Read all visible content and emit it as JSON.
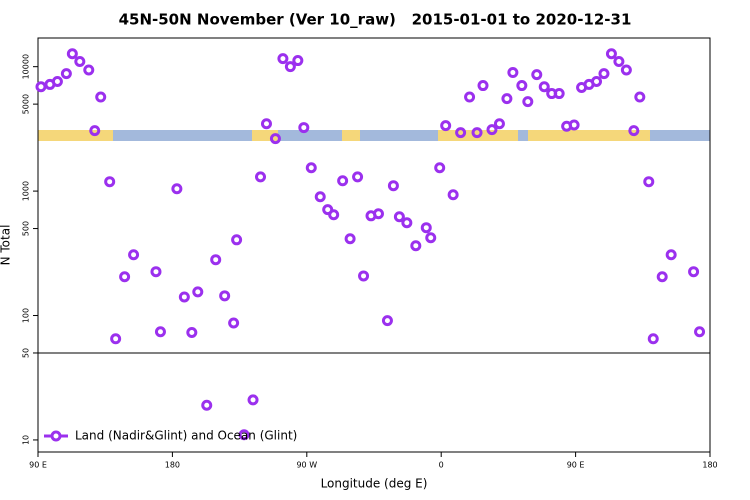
{
  "chart_data": {
    "type": "scatter",
    "title": "45N-50N November (Ver 10_raw)   2015-01-01 to 2020-12-31",
    "x_label": "Longitude (deg E)",
    "y_label": "N Total",
    "log_y": true,
    "hline": 50,
    "xlim": [
      90,
      540
    ],
    "xticks": [
      {
        "value": 90,
        "label": "90 E"
      },
      {
        "value": 180,
        "label": "180"
      },
      {
        "value": 270,
        "label": "90 W"
      },
      {
        "value": 360,
        "label": "0"
      },
      {
        "value": 450,
        "label": "90 E"
      },
      {
        "value": 540,
        "label": "180"
      }
    ],
    "ylim": [
      8,
      17000
    ],
    "yticks": [
      10,
      50,
      100,
      500,
      1000,
      5000,
      10000
    ],
    "legend_position": "lower left",
    "series": [
      {
        "name": "Land (Nadir&Glint) and Ocean (Glint)",
        "color": "#9b30ee",
        "x": [
          92,
          98,
          103,
          109,
          113,
          118,
          124,
          128,
          132,
          138,
          142,
          148,
          154,
          169,
          172,
          183,
          188,
          193,
          197,
          203,
          209,
          215,
          221,
          223,
          228,
          234,
          239,
          243,
          249,
          254,
          259,
          264,
          268,
          273,
          279,
          284,
          288,
          294,
          299,
          304,
          308,
          313,
          318,
          324,
          328,
          332,
          337,
          343,
          350,
          353,
          359,
          363,
          368,
          373,
          379,
          384,
          388,
          394,
          399,
          404,
          408,
          414,
          418,
          424,
          429,
          434,
          439,
          444,
          449,
          454,
          459,
          464,
          469,
          474,
          479,
          484,
          489,
          493,
          499,
          502,
          508,
          514,
          529,
          533
        ],
        "values": [
          6900,
          7200,
          7600,
          8800,
          12700,
          11000,
          9400,
          3060,
          5700,
          1190,
          65,
          205,
          308,
          225,
          74,
          1045,
          141,
          73,
          155,
          19,
          281,
          144,
          87,
          406,
          11,
          21,
          1300,
          3480,
          2640,
          11600,
          10000,
          11200,
          3240,
          1540,
          900,
          710,
          645,
          1210,
          414,
          1300,
          208,
          633,
          658,
          91,
          1105,
          622,
          557,
          364,
          508,
          422,
          1540,
          3360,
          935,
          2950,
          5700,
          2950,
          7050,
          3120,
          3480,
          5540,
          8970,
          7050,
          5240,
          8630,
          6900,
          6080,
          6080,
          3320,
          3400,
          6800,
          7200,
          7600,
          8800,
          12700,
          11000,
          9400,
          3060,
          5700,
          1190,
          65,
          205,
          308,
          225,
          74
        ]
      }
    ]
  }
}
